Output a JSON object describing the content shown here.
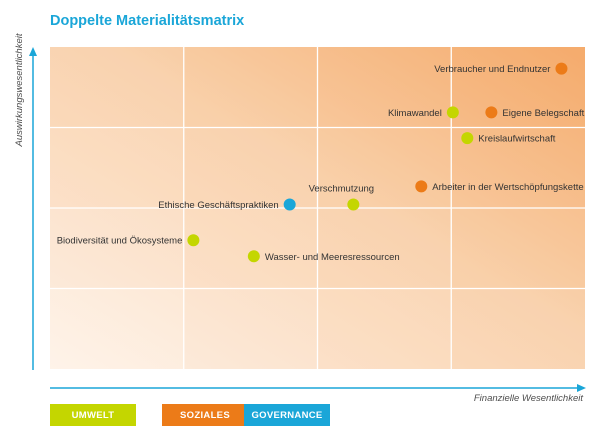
{
  "title": "Doppelte Materialitätsmatrix",
  "colors": {
    "umwelt": "#c4d600",
    "soziales": "#ec7b18",
    "governance": "#1aa6d8",
    "axis": "#1aa6d8"
  },
  "legend": [
    {
      "key": "umwelt",
      "label": "UMWELT"
    },
    {
      "key": "soziales",
      "label": "SOZIALES"
    },
    {
      "key": "governance",
      "label": "GOVERNANCE"
    }
  ],
  "chart_data": {
    "type": "scatter",
    "title": "Doppelte Materialitätsmatrix",
    "xlabel": "Finanzielle Wesentlichkeit",
    "ylabel": "Auswirkungswesentlichkeit",
    "xlim": [
      0,
      100
    ],
    "ylim": [
      0,
      100
    ],
    "grid": true,
    "points": [
      {
        "label": "Verbraucher und Endnutzer",
        "x": 95.6,
        "y": 93.3,
        "category": "soziales",
        "label_side": "left"
      },
      {
        "label": "Klimawandel",
        "x": 75.3,
        "y": 79.7,
        "category": "umwelt",
        "label_side": "left"
      },
      {
        "label": "Eigene Belegschaft",
        "x": 82.5,
        "y": 79.7,
        "category": "soziales",
        "label_side": "right"
      },
      {
        "label": "Kreislaufwirtschaft",
        "x": 78.0,
        "y": 71.7,
        "category": "umwelt",
        "label_side": "right"
      },
      {
        "label": "Arbeiter in der Wertschöpfungskette",
        "x": 69.4,
        "y": 56.7,
        "category": "soziales",
        "label_side": "right"
      },
      {
        "label": "Verschmutzung",
        "x": 56.7,
        "y": 51.1,
        "category": "umwelt",
        "label_side": "above"
      },
      {
        "label": "Ethische Geschäftspraktiken",
        "x": 44.8,
        "y": 51.1,
        "category": "governance",
        "label_side": "left"
      },
      {
        "label": "Biodiversität und Ökosysteme",
        "x": 26.8,
        "y": 40.0,
        "category": "umwelt",
        "label_side": "left"
      },
      {
        "label": "Wasser- und Meeresressourcen",
        "x": 38.1,
        "y": 35.0,
        "category": "umwelt",
        "label_side": "right"
      }
    ]
  }
}
